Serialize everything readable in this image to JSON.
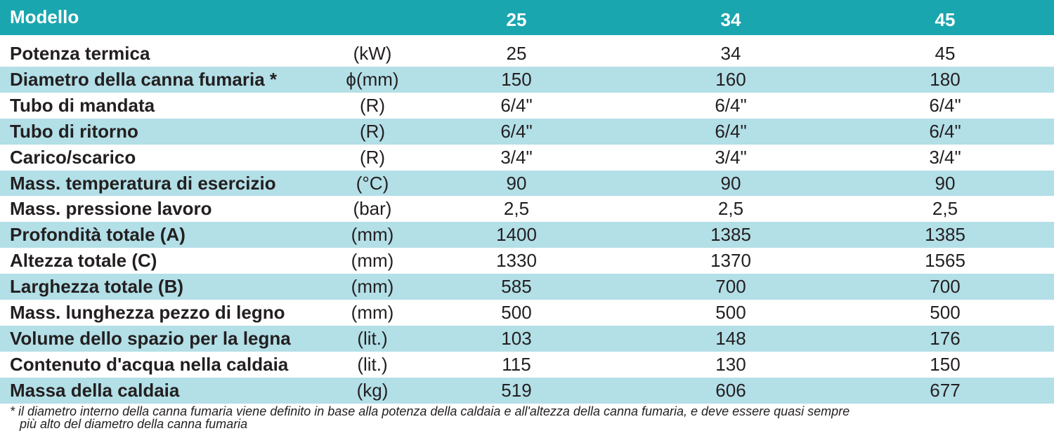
{
  "header": {
    "title": "Modello",
    "models": [
      "25",
      "34",
      "45"
    ]
  },
  "table": {
    "rows": [
      [
        "Potenza termica",
        "(kW)",
        "25",
        "34",
        "45"
      ],
      [
        "Diametro della canna fumaria *",
        "ϕ(mm)",
        "150",
        "160",
        "180"
      ],
      [
        "Tubo di mandata",
        "(R)",
        "6/4\"",
        "6/4\"",
        "6/4\""
      ],
      [
        "Tubo di ritorno",
        "(R)",
        "6/4\"",
        "6/4\"",
        "6/4\""
      ],
      [
        "Carico/scarico",
        "(R)",
        "3/4\"",
        "3/4\"",
        "3/4\""
      ],
      [
        "Mass. temperatura di esercizio",
        "(°C)",
        "90",
        "90",
        "90"
      ],
      [
        "Mass. pressione lavoro",
        "(bar)",
        "2,5",
        "2,5",
        "2,5"
      ],
      [
        "Profondità totale (A)",
        "(mm)",
        "1400",
        "1385",
        "1385"
      ],
      [
        "Altezza totale (C)",
        "(mm)",
        "1330",
        "1370",
        "1565"
      ],
      [
        "Larghezza totale (B)",
        "(mm)",
        "585",
        "700",
        "700"
      ],
      [
        "Mass. lunghezza pezzo di legno",
        "(mm)",
        "500",
        "500",
        "500"
      ],
      [
        "Volume dello spazio per la legna",
        "(lit.)",
        "103",
        "148",
        "176"
      ],
      [
        "Contenuto d'acqua nella caldaia",
        "(lit.)",
        "115",
        "130",
        "150"
      ],
      [
        "Massa della caldaia",
        "(kg)",
        "519",
        "606",
        "677"
      ]
    ]
  },
  "footnote": {
    "lines": [
      "*  il diametro interno della canna fumaria viene definito in base alla potenza della caldaia e all'altezza della canna fumaria, e deve essere quasi sempre",
      "più alto del diametro della canna fumaria"
    ]
  }
}
